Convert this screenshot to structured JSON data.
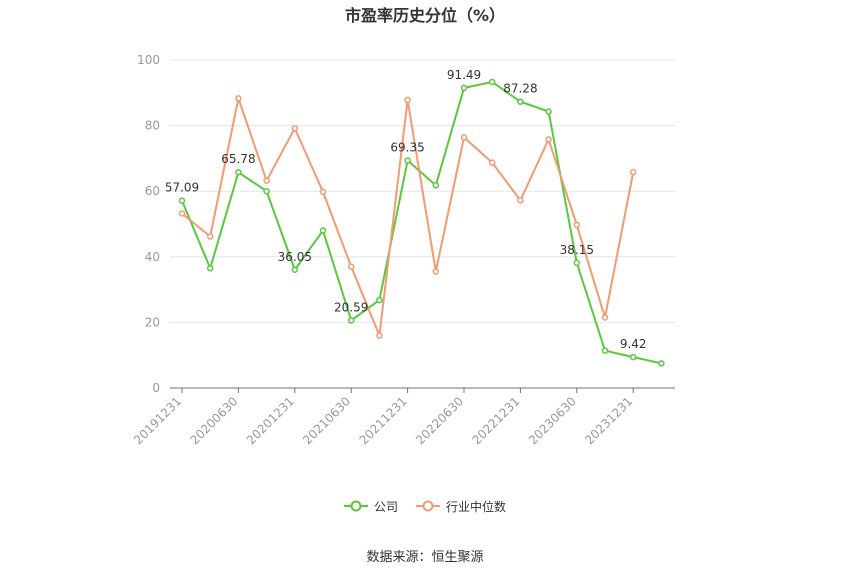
{
  "chart_data": {
    "type": "line",
    "title": "市盈率历史分位（%）",
    "xlabel": "",
    "ylabel": "",
    "ylim": [
      0,
      100
    ],
    "yticks": [
      0,
      20,
      40,
      60,
      80,
      100
    ],
    "x": [
      "20191231",
      "20200331",
      "20200630",
      "20200930",
      "20201231",
      "20210331",
      "20210630",
      "20210930",
      "20211231",
      "20220331",
      "20220630",
      "20220930",
      "20221231",
      "20230331",
      "20230630",
      "20230930",
      "20231231",
      "20240331"
    ],
    "xtick_labels": [
      "20191231",
      "20200630",
      "20201231",
      "20210630",
      "20211231",
      "20220630",
      "20221231",
      "20230630",
      "20231231"
    ],
    "series": [
      {
        "name": "公司",
        "color": "#5ac83c",
        "values": [
          57.09,
          36.5,
          65.78,
          60.0,
          36.05,
          48.0,
          20.59,
          26.8,
          69.35,
          61.8,
          91.49,
          93.3,
          87.28,
          84.3,
          38.15,
          11.4,
          9.42,
          7.5
        ],
        "labels": [
          "57.09",
          null,
          "65.78",
          null,
          "36.05",
          null,
          "20.59",
          null,
          "69.35",
          null,
          "91.49",
          null,
          "87.28",
          null,
          "38.15",
          null,
          "9.42",
          null
        ]
      },
      {
        "name": "行业中位数",
        "color": "#f39a72",
        "values": [
          53.2,
          46.2,
          88.3,
          63.2,
          79.2,
          59.8,
          37.0,
          16.0,
          87.8,
          35.5,
          76.4,
          68.7,
          57.2,
          75.8,
          49.7,
          21.5,
          65.8,
          null
        ]
      }
    ],
    "grid": true,
    "legend_position": "bottom"
  },
  "legend": [
    {
      "name": "公司",
      "color": "#5ac83c"
    },
    {
      "name": "行业中位数",
      "color": "#f39a72"
    }
  ],
  "source": "数据来源：恒生聚源"
}
